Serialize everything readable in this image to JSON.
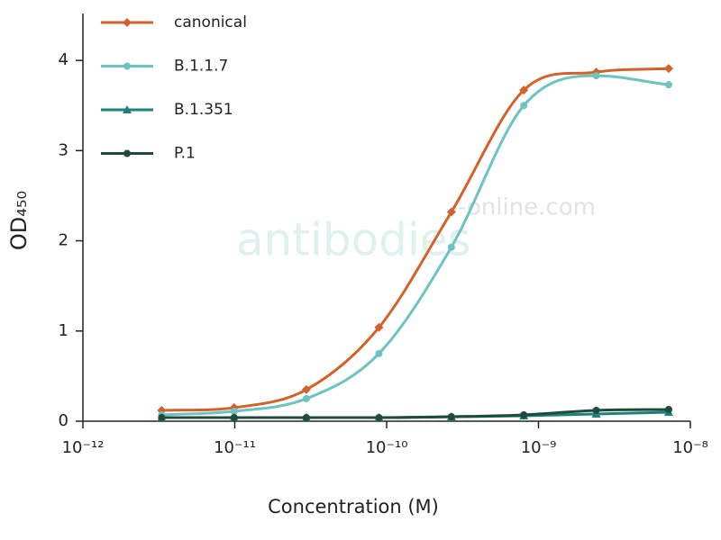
{
  "chart_data": {
    "type": "line",
    "xscale": "log",
    "xlabel": "Concentration (M)",
    "ylabel": "OD₄₅₀",
    "watermark": [
      "antibodies",
      "-online.com"
    ],
    "x": [
      3.3e-12,
      9.9e-12,
      2.96e-11,
      8.9e-11,
      2.67e-10,
      8e-10,
      2.4e-09,
      7.2e-09
    ],
    "series": [
      {
        "name": "canonical",
        "color": "#d2622a",
        "marker": "diamond",
        "values": [
          0.12,
          0.15,
          0.35,
          1.04,
          2.32,
          3.67,
          3.87,
          3.91
        ]
      },
      {
        "name": "B.1.1.7",
        "color": "#6cc3c0",
        "marker": "circle",
        "values": [
          0.07,
          0.11,
          0.25,
          0.75,
          1.93,
          3.5,
          3.83,
          3.73
        ]
      },
      {
        "name": "B.1.351",
        "color": "#1e8078",
        "marker": "triangle",
        "values": [
          0.04,
          0.04,
          0.04,
          0.04,
          0.05,
          0.06,
          0.08,
          0.1
        ]
      },
      {
        "name": "P.1",
        "color": "#1f4a40",
        "marker": "circle",
        "values": [
          0.04,
          0.04,
          0.04,
          0.04,
          0.05,
          0.07,
          0.12,
          0.13
        ]
      }
    ],
    "xlim": [
      1e-12,
      1e-08
    ],
    "xticks": [
      {
        "value": 1e-12,
        "label": "10⁻¹²"
      },
      {
        "value": 1e-11,
        "label": "10⁻¹¹"
      },
      {
        "value": 1e-10,
        "label": "10⁻¹⁰"
      },
      {
        "value": 1e-09,
        "label": "10⁻⁹"
      },
      {
        "value": 1e-08,
        "label": "10⁻⁸"
      }
    ],
    "ylim": [
      0,
      4.5
    ],
    "yticks": [
      0,
      1,
      2,
      3,
      4
    ],
    "legend": "upper left"
  }
}
